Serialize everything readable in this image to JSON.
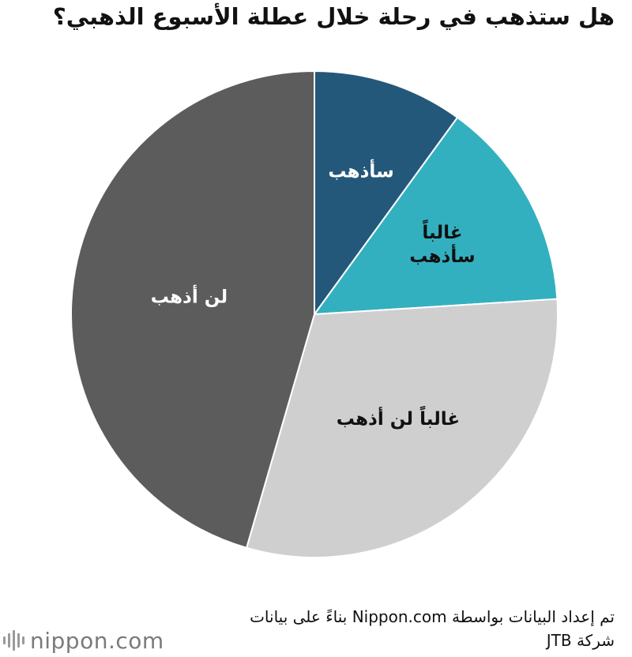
{
  "title": "هل ستذهب في رحلة خلال عطلة الأسبوع الذهبي؟",
  "chart_data": {
    "type": "pie",
    "title": "هل ستذهب في رحلة خلال عطلة الأسبوع الذهبي؟",
    "direction": "clockwise from top",
    "slices": [
      {
        "label": "سأذهب",
        "value": 10.0,
        "color": "#24587a",
        "label_color": "#ffffff"
      },
      {
        "label": "غالباً سأذهب",
        "value": 14.0,
        "color": "#33b0c0",
        "label_color": "#111111",
        "label_lines": [
          "غالباً",
          "سأذهب"
        ]
      },
      {
        "label": "غالباً لن أذهب",
        "value": 30.5,
        "color": "#cfcfcf",
        "label_color": "#111111",
        "label_lines": [
          "غالباً لن أذهب"
        ]
      },
      {
        "label": "لن أذهب",
        "value": 45.5,
        "color": "#5c5c5c",
        "label_color": "#ffffff",
        "label_lines": [
          "لن أذهب"
        ]
      }
    ]
  },
  "source": {
    "line1": "تم إعداد البيانات بواسطة Nippon.com بناءً على بيانات",
    "line2": "شركة JTB"
  },
  "logo": {
    "text": "nippon.com"
  }
}
